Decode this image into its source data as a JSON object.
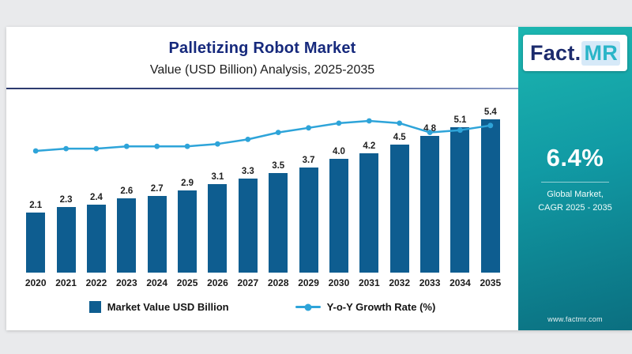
{
  "header": {
    "title": "Palletizing Robot Market",
    "subtitle": "Value (USD Billion) Analysis, 2025-2035"
  },
  "chart_data": {
    "type": "bar",
    "title": "Palletizing Robot Market",
    "subtitle": "Value (USD Billion) Analysis, 2025-2035",
    "categories": [
      "2020",
      "2021",
      "2022",
      "2023",
      "2024",
      "2025",
      "2026",
      "2027",
      "2028",
      "2029",
      "2030",
      "2031",
      "2032",
      "2033",
      "2034",
      "2035"
    ],
    "series": [
      {
        "name": "Market Value USD Billion",
        "type": "bar",
        "values": [
          2.1,
          2.3,
          2.4,
          2.6,
          2.7,
          2.9,
          3.1,
          3.3,
          3.5,
          3.7,
          4.0,
          4.2,
          4.5,
          4.8,
          5.1,
          5.4
        ],
        "color": "#0e5d90"
      },
      {
        "name": "Y-o-Y Growth Rate (%)",
        "type": "line",
        "values_estimated": [
          6.0,
          6.1,
          6.1,
          6.2,
          6.2,
          6.2,
          6.3,
          6.5,
          6.8,
          7.0,
          7.2,
          7.3,
          7.2,
          6.8,
          6.9,
          7.1
        ],
        "color": "#2ea4d9"
      }
    ],
    "xlabel": "",
    "ylabel": "",
    "ylim": [
      0,
      6
    ],
    "grid": false,
    "value_labels": true,
    "legend_position": "bottom"
  },
  "legend": {
    "bar_label": "Market Value USD Billion",
    "line_label": "Y-o-Y Growth Rate (%)"
  },
  "sidebar": {
    "logo_fact": "Fact",
    "logo_dot": ".",
    "logo_mr": "MR",
    "cagr_value": "6.4%",
    "caption_line1": "Global Market,",
    "caption_line2": "CAGR 2025 - 2035",
    "website": "www.factmr.com"
  },
  "colors": {
    "bar": "#0e5d90",
    "line": "#2ea4d9",
    "title": "#16297c",
    "panel_top": "#1cb6b0",
    "panel_bottom": "#0b6f80"
  }
}
